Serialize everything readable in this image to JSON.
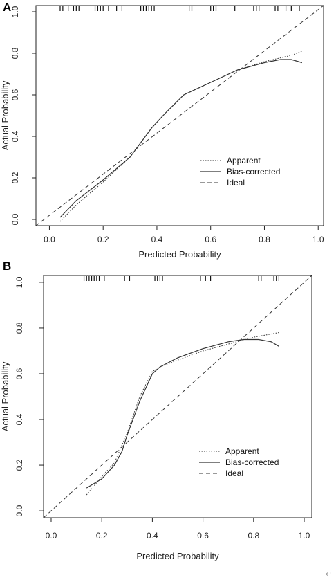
{
  "corner_mark": "↵",
  "chart_data": [
    {
      "type": "line",
      "panel_label": "A",
      "xlabel": "Predicted Probability",
      "ylabel": "Actual Probability",
      "xlim": [
        -0.05,
        1.02
      ],
      "ylim": [
        -0.03,
        1.03
      ],
      "xticks": [
        0.0,
        0.2,
        0.4,
        0.6,
        0.8,
        1.0
      ],
      "yticks": [
        0.0,
        0.2,
        0.4,
        0.6,
        0.8,
        1.0
      ],
      "xtick_labels": [
        "0.0",
        "0.2",
        "0.4",
        "0.6",
        "0.8",
        "1.0"
      ],
      "ytick_labels": [
        "0.0",
        "0.2",
        "0.4",
        "0.6",
        "0.8",
        "1.0"
      ],
      "legend_position": "bottom-right",
      "series": [
        {
          "name": "Apparent",
          "style": "dotted",
          "x": [
            0.04,
            0.1,
            0.2,
            0.3,
            0.38,
            0.43,
            0.5,
            0.6,
            0.7,
            0.8,
            0.9,
            0.94
          ],
          "y": [
            -0.01,
            0.07,
            0.18,
            0.3,
            0.44,
            0.51,
            0.6,
            0.66,
            0.72,
            0.76,
            0.79,
            0.81
          ]
        },
        {
          "name": "Bias-corrected",
          "style": "solid",
          "x": [
            0.04,
            0.1,
            0.2,
            0.3,
            0.38,
            0.43,
            0.5,
            0.6,
            0.7,
            0.8,
            0.86,
            0.9,
            0.94
          ],
          "y": [
            0.01,
            0.09,
            0.19,
            0.3,
            0.44,
            0.51,
            0.6,
            0.66,
            0.72,
            0.755,
            0.77,
            0.77,
            0.755
          ]
        },
        {
          "name": "Ideal",
          "style": "dashed",
          "x": [
            -0.05,
            1.02
          ],
          "y": [
            -0.03,
            1.03
          ]
        }
      ],
      "rug": [
        0.04,
        0.05,
        0.07,
        0.09,
        0.1,
        0.11,
        0.17,
        0.18,
        0.19,
        0.2,
        0.22,
        0.25,
        0.27,
        0.34,
        0.35,
        0.36,
        0.37,
        0.38,
        0.39,
        0.52,
        0.53,
        0.6,
        0.61,
        0.62,
        0.69,
        0.76,
        0.77,
        0.78,
        0.84,
        0.85,
        0.88,
        0.9,
        0.93
      ]
    },
    {
      "type": "line",
      "panel_label": "B",
      "xlabel": "Predicted Probability",
      "ylabel": "Actual Probability",
      "xlim": [
        -0.03,
        1.03
      ],
      "ylim": [
        -0.03,
        1.03
      ],
      "xticks": [
        0.0,
        0.2,
        0.4,
        0.6,
        0.8,
        1.0
      ],
      "yticks": [
        0.0,
        0.2,
        0.4,
        0.6,
        0.8,
        1.0
      ],
      "xtick_labels": [
        "0.0",
        "0.2",
        "0.4",
        "0.6",
        "0.8",
        "1.0"
      ],
      "ytick_labels": [
        "0.0",
        "0.2",
        "0.4",
        "0.6",
        "0.8",
        "1.0"
      ],
      "legend_position": "bottom-right",
      "series": [
        {
          "name": "Apparent",
          "style": "dotted",
          "x": [
            0.14,
            0.2,
            0.25,
            0.3,
            0.35,
            0.4,
            0.43,
            0.5,
            0.6,
            0.7,
            0.8,
            0.9
          ],
          "y": [
            0.07,
            0.15,
            0.21,
            0.34,
            0.5,
            0.61,
            0.63,
            0.66,
            0.7,
            0.73,
            0.76,
            0.78
          ]
        },
        {
          "name": "Bias-corrected",
          "style": "solid",
          "x": [
            0.14,
            0.2,
            0.25,
            0.28,
            0.3,
            0.35,
            0.4,
            0.43,
            0.5,
            0.6,
            0.7,
            0.76,
            0.82,
            0.87,
            0.9
          ],
          "y": [
            0.1,
            0.14,
            0.2,
            0.26,
            0.33,
            0.48,
            0.6,
            0.63,
            0.67,
            0.71,
            0.74,
            0.75,
            0.75,
            0.74,
            0.72
          ]
        },
        {
          "name": "Ideal",
          "style": "dashed",
          "x": [
            -0.03,
            1.03
          ],
          "y": [
            -0.03,
            1.03
          ]
        }
      ],
      "rug": [
        0.13,
        0.14,
        0.15,
        0.16,
        0.17,
        0.18,
        0.19,
        0.21,
        0.29,
        0.31,
        0.41,
        0.42,
        0.43,
        0.44,
        0.59,
        0.61,
        0.63,
        0.82,
        0.83,
        0.88,
        0.89,
        0.9
      ]
    }
  ]
}
